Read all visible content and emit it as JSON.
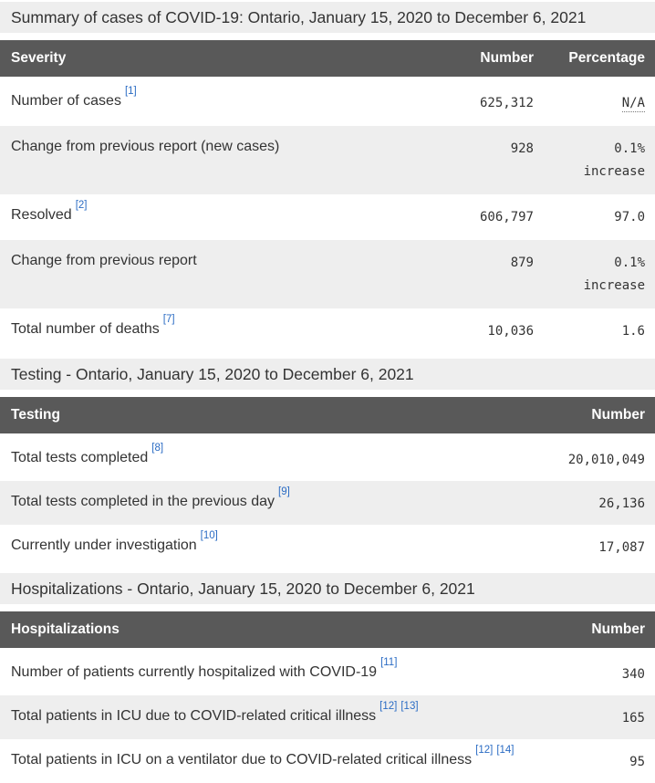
{
  "colors": {
    "table_header_bg": "#595959",
    "stripe_and_caption_bg": "#eeeeee",
    "text": "#333333",
    "footnote_link_blue": "#2b6cc4"
  },
  "captions": {
    "summary": "Summary of cases of COVID-19: Ontario, January 15, 2020 to December 6, 2021",
    "testing": "Testing - Ontario, January 15, 2020 to December 6, 2021",
    "hospitalizations": "Hospitalizations - Ontario, January 15, 2020 to December 6, 2021"
  },
  "severity_table": {
    "headers": {
      "label": "Severity",
      "number": "Number",
      "percentage": "Percentage"
    },
    "rows": [
      {
        "label": "Number of cases",
        "refs": [
          "[1]"
        ],
        "number": "625,312",
        "percentage": "N/A",
        "na": true
      },
      {
        "label": "Change from previous report (new cases)",
        "refs": [],
        "number": "928",
        "percentage": "0.1% increase",
        "na": false
      },
      {
        "label": "Resolved",
        "refs": [
          "[2]"
        ],
        "number": "606,797",
        "percentage": "97.0",
        "na": false
      },
      {
        "label": "Change from previous report",
        "refs": [],
        "number": "879",
        "percentage": "0.1% increase",
        "na": false
      },
      {
        "label": "Total number of deaths",
        "refs": [
          "[7]"
        ],
        "number": "10,036",
        "percentage": "1.6",
        "na": false
      }
    ]
  },
  "testing_table": {
    "headers": {
      "label": "Testing",
      "number": "Number"
    },
    "rows": [
      {
        "label": "Total tests completed",
        "refs": [
          "[8]"
        ],
        "number": "20,010,049"
      },
      {
        "label": "Total tests completed in the previous day",
        "refs": [
          "[9]"
        ],
        "number": "26,136"
      },
      {
        "label": "Currently under investigation",
        "refs": [
          "[10]"
        ],
        "number": "17,087"
      }
    ]
  },
  "hospitalizations_table": {
    "headers": {
      "label": "Hospitalizations",
      "number": "Number"
    },
    "rows": [
      {
        "label": "Number of patients currently hospitalized with COVID-19",
        "refs": [
          "[11]"
        ],
        "number": "340"
      },
      {
        "label": "Total patients in ICU due to COVID-related critical illness",
        "refs": [
          "[12]",
          "[13]"
        ],
        "number": "165"
      },
      {
        "label": "Total patients in ICU on a ventilator due to COVID-related critical illness",
        "refs": [
          "[12]",
          "[14]"
        ],
        "number": "95"
      }
    ]
  }
}
